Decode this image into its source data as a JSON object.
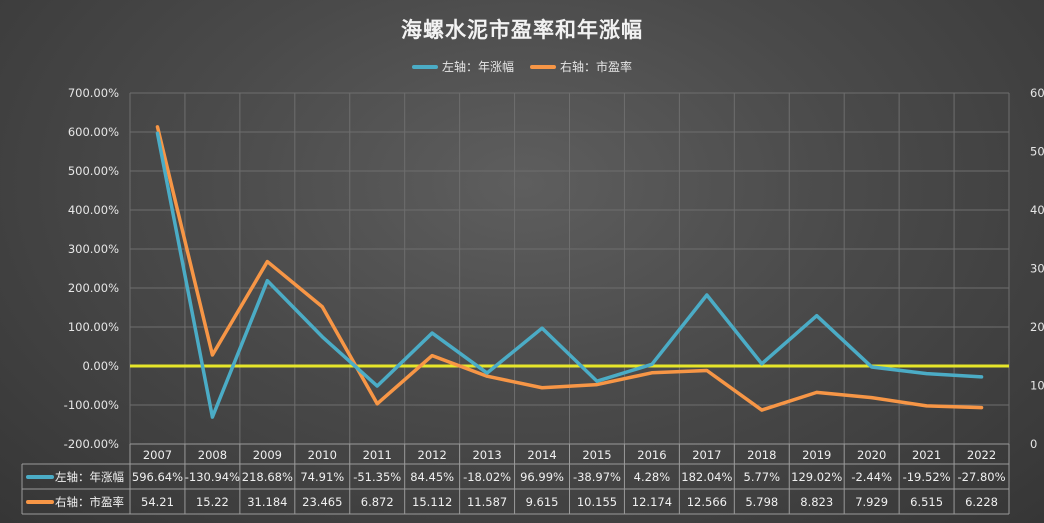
{
  "chart_data": {
    "type": "line",
    "title": "海螺水泥市盈率和年涨幅",
    "categories": [
      "2007",
      "2008",
      "2009",
      "2010",
      "2011",
      "2012",
      "2013",
      "2014",
      "2015",
      "2016",
      "2017",
      "2018",
      "2019",
      "2020",
      "2021",
      "2022"
    ],
    "series": [
      {
        "name": "左轴：年涨幅",
        "axis": "left",
        "color": "#4bacc6",
        "values": [
          596.64,
          -130.94,
          218.68,
          74.91,
          -51.35,
          84.45,
          -18.02,
          96.99,
          -38.97,
          4.28,
          182.04,
          5.77,
          129.02,
          -2.44,
          -19.52,
          -27.8
        ],
        "labels": [
          "596.64%",
          "-130.94%",
          "218.68%",
          "74.91%",
          "-51.35%",
          "84.45%",
          "-18.02%",
          "96.99%",
          "-38.97%",
          "4.28%",
          "182.04%",
          "5.77%",
          "129.02%",
          "-2.44%",
          "-19.52%",
          "-27.80%"
        ]
      },
      {
        "name": "右轴：市盈率",
        "axis": "right",
        "color": "#f79646",
        "values": [
          54.21,
          15.22,
          31.184,
          23.465,
          6.872,
          15.112,
          11.587,
          9.615,
          10.155,
          12.174,
          12.566,
          5.798,
          8.823,
          7.929,
          6.515,
          6.228
        ],
        "labels": [
          "54.21",
          "15.22",
          "31.184",
          "23.465",
          "6.872",
          "15.112",
          "11.587",
          "9.615",
          "10.155",
          "12.174",
          "12.566",
          "5.798",
          "8.823",
          "7.929",
          "6.515",
          "6.228"
        ]
      }
    ],
    "left_axis": {
      "ylim": [
        -200,
        700
      ],
      "ticks": [
        700,
        600,
        500,
        400,
        300,
        200,
        100,
        0,
        -100,
        -200
      ],
      "tick_labels": [
        "700.00%",
        "600.00%",
        "500.00%",
        "400.00%",
        "300.00%",
        "200.00%",
        "100.00%",
        "0.00%",
        "-100.00%",
        "-200.00%"
      ]
    },
    "right_axis": {
      "ylim": [
        0,
        60
      ],
      "ticks": [
        60,
        50,
        40,
        30,
        20,
        10,
        0
      ],
      "tick_labels": [
        "60",
        "50",
        "40",
        "30",
        "20",
        "10",
        "0"
      ]
    },
    "zero_line_color": "#e6e62a",
    "grid": true,
    "legend_placement": "top-center",
    "data_table": true
  }
}
